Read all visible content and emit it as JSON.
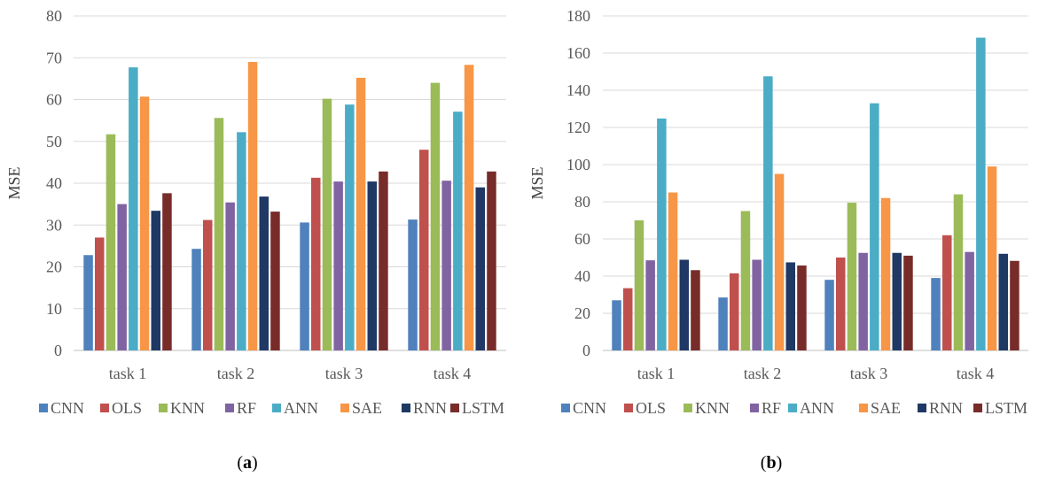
{
  "colors": {
    "CNN": "#4f81bd",
    "OLS": "#c0504d",
    "KNN": "#9bbb59",
    "RF": "#8064a2",
    "ANN": "#4bacc6",
    "SAE": "#f79646",
    "RNN": "#1f3864",
    "LSTM": "#772c2a",
    "grid": "#d9d9d9",
    "axis": "#bfbfbf"
  },
  "captions": [
    {
      "open": "(",
      "letter": "a",
      "close": ")"
    },
    {
      "open": "(",
      "letter": "b",
      "close": ")"
    }
  ],
  "chart_data": [
    {
      "type": "bar",
      "ylabel": "MSE",
      "xlabel": "",
      "ylim": [
        0,
        80
      ],
      "yticks": [
        0,
        10,
        20,
        30,
        40,
        50,
        60,
        70,
        80
      ],
      "grid": true,
      "legend": "bottom",
      "categories": [
        "task 1",
        "task 2",
        "task 3",
        "task 4"
      ],
      "series": [
        {
          "name": "CNN",
          "values": [
            22.8,
            24.3,
            30.6,
            31.3
          ]
        },
        {
          "name": "OLS",
          "values": [
            27.0,
            31.2,
            41.3,
            48.0
          ]
        },
        {
          "name": "KNN",
          "values": [
            51.7,
            55.6,
            60.2,
            64.0
          ]
        },
        {
          "name": "RF",
          "values": [
            35.0,
            35.4,
            40.4,
            40.6
          ]
        },
        {
          "name": "ANN",
          "values": [
            67.7,
            52.2,
            58.8,
            57.1
          ]
        },
        {
          "name": "SAE",
          "values": [
            60.7,
            69.0,
            65.2,
            68.3
          ]
        },
        {
          "name": "RNN",
          "values": [
            33.4,
            36.8,
            40.4,
            39.0
          ]
        },
        {
          "name": "LSTM",
          "values": [
            37.6,
            33.2,
            42.8,
            42.8
          ]
        }
      ]
    },
    {
      "type": "bar",
      "ylabel": "MSE",
      "xlabel": "",
      "ylim": [
        0,
        180
      ],
      "yticks": [
        0,
        20,
        40,
        60,
        80,
        100,
        120,
        140,
        160,
        180
      ],
      "grid": true,
      "legend": "bottom",
      "categories": [
        "task 1",
        "task 2",
        "task 3",
        "task 4"
      ],
      "series": [
        {
          "name": "CNN",
          "values": [
            27.0,
            28.5,
            38.0,
            39.0
          ]
        },
        {
          "name": "OLS",
          "values": [
            33.5,
            41.5,
            50.0,
            62.0
          ]
        },
        {
          "name": "KNN",
          "values": [
            70.0,
            75.0,
            79.5,
            84.0
          ]
        },
        {
          "name": "RF",
          "values": [
            48.5,
            48.8,
            52.5,
            53.0
          ]
        },
        {
          "name": "ANN",
          "values": [
            124.8,
            147.5,
            133.0,
            168.3
          ]
        },
        {
          "name": "SAE",
          "values": [
            85.0,
            95.0,
            82.0,
            99.0
          ]
        },
        {
          "name": "RNN",
          "values": [
            48.8,
            47.4,
            52.5,
            52.0
          ]
        },
        {
          "name": "LSTM",
          "values": [
            43.2,
            45.7,
            51.0,
            48.2
          ]
        }
      ]
    }
  ]
}
